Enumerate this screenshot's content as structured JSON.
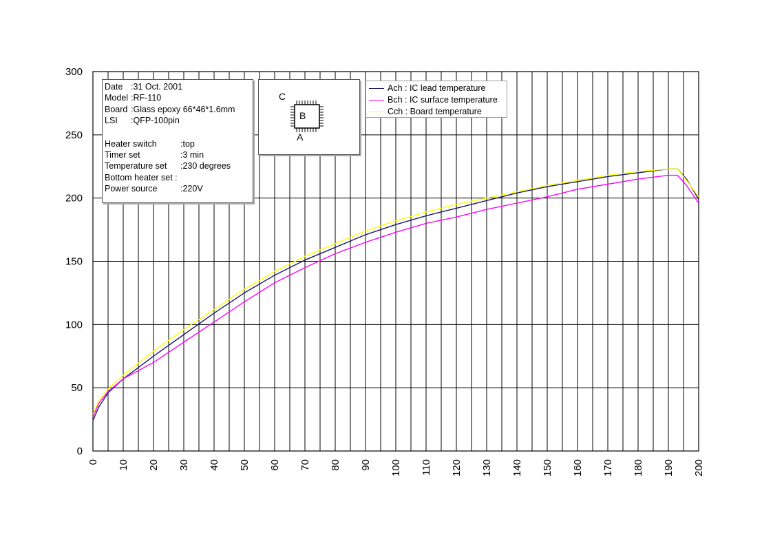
{
  "chart_data": {
    "type": "line",
    "title": "",
    "xlabel": "",
    "ylabel": "",
    "xlim": [
      0,
      200
    ],
    "ylim": [
      0,
      300
    ],
    "x_ticks": [
      0,
      10,
      20,
      30,
      40,
      50,
      60,
      70,
      80,
      90,
      100,
      110,
      120,
      130,
      140,
      150,
      160,
      170,
      180,
      190,
      200
    ],
    "y_ticks": [
      0,
      50,
      100,
      150,
      200,
      250,
      300
    ],
    "grid": true,
    "legend_position": "top-center",
    "x": [
      0,
      2,
      5,
      10,
      20,
      30,
      40,
      50,
      60,
      70,
      80,
      90,
      100,
      110,
      120,
      130,
      140,
      150,
      160,
      170,
      180,
      190,
      193,
      196,
      200
    ],
    "series": [
      {
        "name": "Ach : IC lead temperature",
        "color": "#1a1a66",
        "values": [
          24,
          35,
          46,
          57,
          75,
          92,
          109,
          125,
          139,
          151,
          161,
          171,
          179,
          186,
          192,
          198,
          204,
          209,
          213,
          217,
          220,
          223,
          223,
          215,
          199
        ]
      },
      {
        "name": "Bch : IC surface temperature",
        "color": "#ff00ff",
        "values": [
          27,
          38,
          47,
          57,
          70,
          86,
          102,
          118,
          133,
          145,
          156,
          165,
          173,
          180,
          185,
          191,
          196,
          201,
          207,
          211,
          215,
          218,
          218,
          210,
          196
        ]
      },
      {
        "name": "Cch : Board temperature",
        "color": "#ffff00",
        "values": [
          29,
          40,
          49,
          60,
          79,
          96,
          112,
          128,
          142,
          154,
          164,
          174,
          182,
          189,
          195,
          200,
          205,
          210,
          214,
          218,
          221,
          223,
          223,
          214,
          201
        ]
      }
    ]
  },
  "info_panel": {
    "date_key": "Date",
    "date_val": ":31 Oct. 2001",
    "model_key": "Model",
    "model_val": ":RF-110",
    "board_key": "Board",
    "board_val": ":Glass epoxy 66*46*1.6mm",
    "lsi_key": "LSI",
    "lsi_val": ":QFP-100pin",
    "heater_key": "Heater switch",
    "heater_val": ":top",
    "timer_key": "Timer set",
    "timer_val": ":3 min",
    "temp_key": "Temperature set",
    "temp_val": ":230 degrees",
    "bottom_key": "Bottom heater set :",
    "bottom_val": "",
    "power_key": "Power source",
    "power_val": ":220V"
  },
  "diagram": {
    "label_c": "C",
    "label_b": "B",
    "label_a": "A"
  }
}
